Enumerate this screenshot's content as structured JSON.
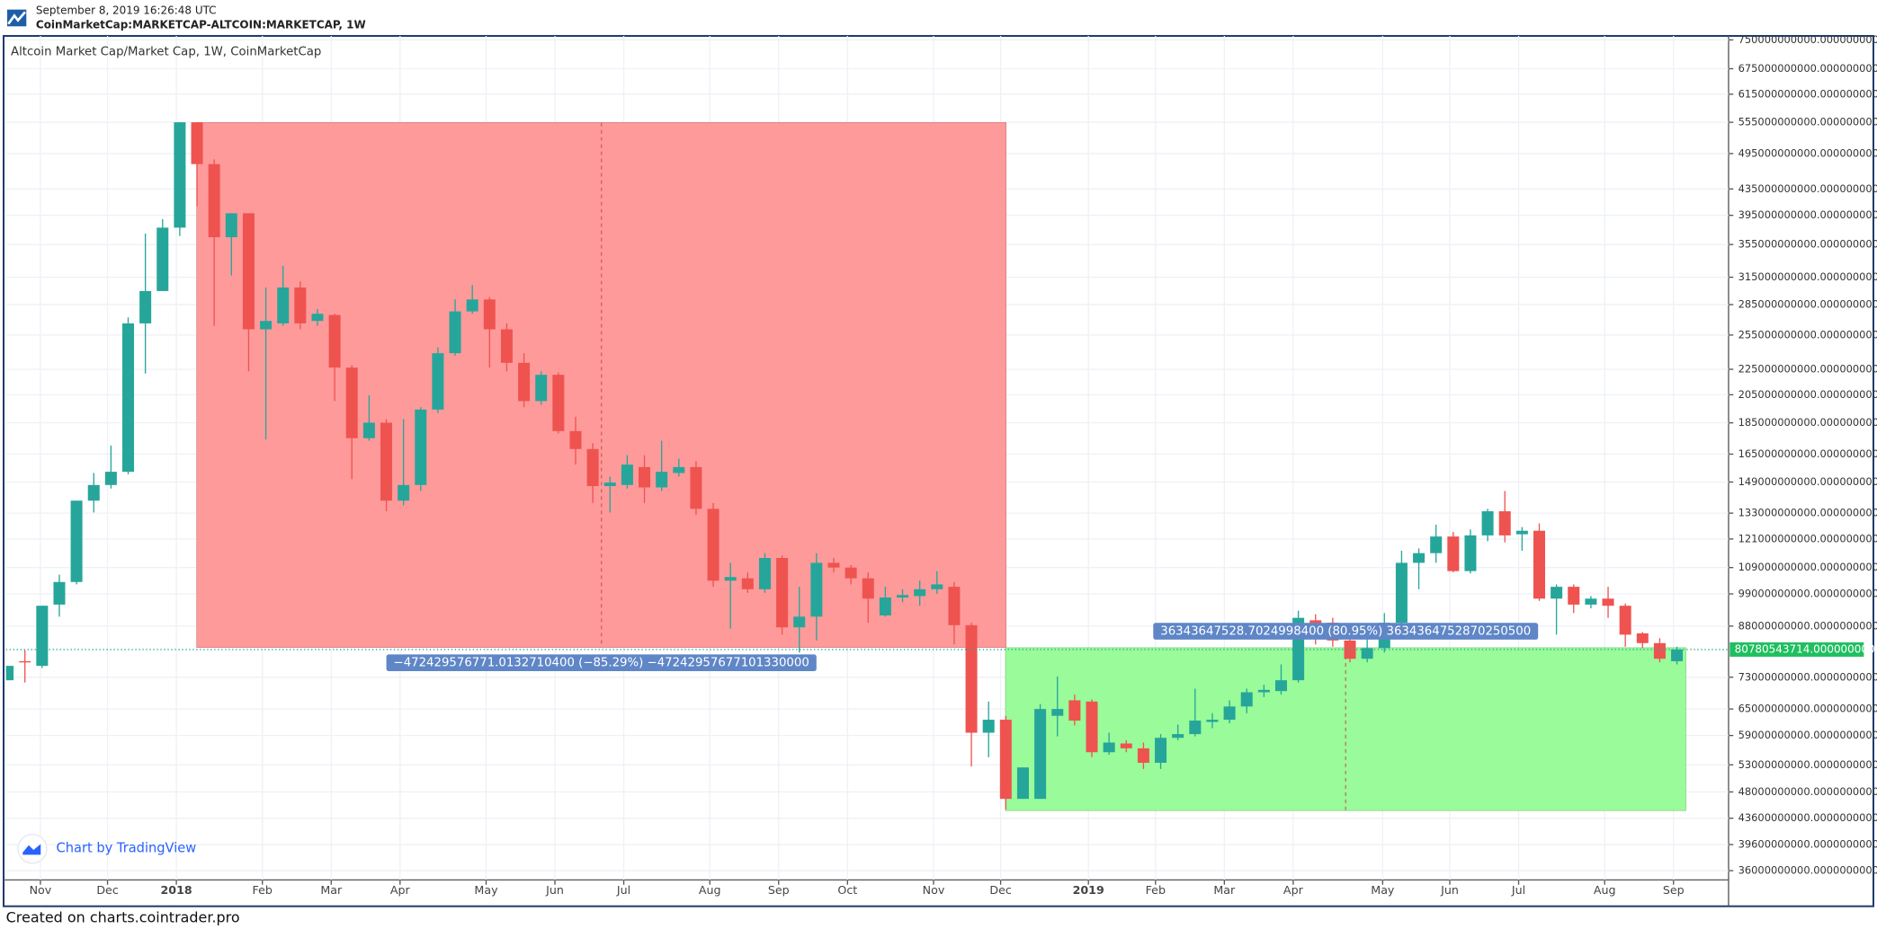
{
  "chart_data": {
    "type": "candlestick",
    "timestamp": "September 8, 2019 16:26:48 UTC",
    "symbol": "CoinMarketCap:MARKETCAP-ALTCOIN:MARKETCAP, 1W",
    "title": "Altcoin Market Cap/Market Cap, 1W, CoinMarketCap",
    "watermark": "Chart by TradingView",
    "footer": "Created on charts.cointrader.pro",
    "log_y": true,
    "grid": true,
    "up_color": "#26a69a",
    "down_color": "#ef5350",
    "xlim": [
      -0.1,
      100
    ],
    "xticks": [
      {
        "value": 1.9,
        "label": "Nov"
      },
      {
        "value": 5.8,
        "label": "Dec"
      },
      {
        "value": 9.8,
        "label": "2018"
      },
      {
        "value": 14.8,
        "label": "Feb"
      },
      {
        "value": 18.8,
        "label": "Mar"
      },
      {
        "value": 22.8,
        "label": "Apr"
      },
      {
        "value": 27.8,
        "label": "May"
      },
      {
        "value": 31.8,
        "label": "Jun"
      },
      {
        "value": 35.8,
        "label": "Jul"
      },
      {
        "value": 40.8,
        "label": "Aug"
      },
      {
        "value": 44.8,
        "label": "Sep"
      },
      {
        "value": 48.8,
        "label": "Oct"
      },
      {
        "value": 53.8,
        "label": "Nov"
      },
      {
        "value": 57.7,
        "label": "Dec"
      },
      {
        "value": 62.8,
        "label": "2019"
      },
      {
        "value": 66.7,
        "label": "Feb"
      },
      {
        "value": 70.7,
        "label": "Mar"
      },
      {
        "value": 74.7,
        "label": "Apr"
      },
      {
        "value": 79.9,
        "label": "May"
      },
      {
        "value": 83.8,
        "label": "Jun"
      },
      {
        "value": 87.8,
        "label": "Jul"
      },
      {
        "value": 92.8,
        "label": "Aug"
      },
      {
        "value": 96.8,
        "label": "Sep"
      }
    ],
    "ylim": [
      34800000000.0,
      761000000000.0
    ],
    "yticks": [
      {
        "value": 750000000000.0,
        "label": "750000000000.0000000000"
      },
      {
        "value": 675000000000.0,
        "label": "675000000000.0000000000"
      },
      {
        "value": 615000000000.0,
        "label": "615000000000.0000000000"
      },
      {
        "value": 555000000000.0,
        "label": "555000000000.0000000000"
      },
      {
        "value": 495000000000.0,
        "label": "495000000000.0000000000"
      },
      {
        "value": 435000000000.0,
        "label": "435000000000.0000000000"
      },
      {
        "value": 395000000000.0,
        "label": "395000000000.0000000000"
      },
      {
        "value": 355000000000.0,
        "label": "355000000000.0000000000"
      },
      {
        "value": 315000000000.0,
        "label": "315000000000.0000000000"
      },
      {
        "value": 285000000000.0,
        "label": "285000000000.0000000000"
      },
      {
        "value": 255000000000.0,
        "label": "255000000000.0000000000"
      },
      {
        "value": 225000000000.0,
        "label": "225000000000.0000000000"
      },
      {
        "value": 205000000000.0,
        "label": "205000000000.0000000000"
      },
      {
        "value": 185000000000.0,
        "label": "185000000000.0000000000"
      },
      {
        "value": 165000000000.0,
        "label": "165000000000.0000000000"
      },
      {
        "value": 149000000000.0,
        "label": "149000000000.0000000000"
      },
      {
        "value": 133000000000.0,
        "label": "133000000000.0000000000"
      },
      {
        "value": 121000000000.0,
        "label": "121000000000.0000000000"
      },
      {
        "value": 109000000000.0,
        "label": "109000000000.0000000000"
      },
      {
        "value": 99000000000.0,
        "label": "99000000000.0000000000"
      },
      {
        "value": 88000000000.0,
        "label": "88000000000.0000000000"
      },
      {
        "value": 73000000000.0,
        "label": "73000000000.0000000000"
      },
      {
        "value": 65000000000.0,
        "label": "65000000000.0000000000"
      },
      {
        "value": 59000000000.0,
        "label": "59000000000.0000000000"
      },
      {
        "value": 53000000000.0,
        "label": "53000000000.0000000000"
      },
      {
        "value": 48000000000.0,
        "label": "48000000000.0000000000"
      },
      {
        "value": 43600000000.0,
        "label": "43600000000.0000000000"
      },
      {
        "value": 39600000000.0,
        "label": "39600000000.0000000000"
      },
      {
        "value": 36000000000.0,
        "label": "36000000000.0000000000"
      }
    ],
    "open": [
      72200000000.0,
      77400000000.0,
      76100000000.0,
      95200000000.0,
      103400000000.0,
      139200000000.0,
      147400000000.0,
      154700000000.0,
      266100000000.0,
      299500000000.0,
      377600000000.0,
      555000000000.0,
      476300000000.0,
      364600000000.0,
      398000000000.0,
      260400000000.0,
      266100000000.0,
      303400000000.0,
      268500000000.0,
      274400000000.0,
      226400000000.0,
      174900000000.0,
      185100000000.0,
      139200000000.0,
      147400000000.0,
      194200000000.0,
      238600000000.0,
      278000000000.0,
      290400000000.0,
      260400000000.0,
      230400000000.0,
      200300000000.0,
      220500000000.0,
      179500000000.0,
      168100000000.0,
      146800000000.0,
      147400000000.0,
      157400000000.0,
      146100000000.0,
      154000000000.0,
      157400000000.0,
      135100000000.0,
      103900000000.0,
      104800000000.0,
      100700000000.0,
      112900000000.0,
      87600000000.0,
      91100000000.0,
      110900000000.0,
      109000000000.0,
      104800000000.0,
      91500000000.0,
      97700000000.0,
      98200000000.0,
      100700000000.0,
      101600000000.0,
      88300000000.0,
      59600000000.0,
      62500000000.0,
      46800000000.0,
      46800000000.0,
      63400000000.0,
      67100000000.0,
      66800000000.0,
      55500000000.0,
      57300000000.0,
      56300000000.0,
      53400000000.0,
      58500000000.0,
      59300000000.0,
      62000000000.0,
      62500000000.0,
      65600000000.0,
      69100000000.0,
      69400000000.0,
      72200000000.0,
      89900000000.0,
      89100000000.0,
      83500000000.0,
      78100000000.0,
      81200000000.0,
      89100000000.0,
      110900000000.0,
      114900000000.0,
      122100000000.0,
      107600000000.0,
      122600000000.0,
      133900000000.0,
      123100000000.0,
      124700000000.0,
      97300000000.0,
      101600000000.0,
      95200000000.0,
      97300000000.0,
      94800000000.0,
      85700000000.0,
      82700000000.0,
      77400000000.0
    ],
    "high": [
      76100000000.0,
      80600000000.0,
      94800000000.0,
      106200000000.0,
      139200000000.0,
      154000000000.0,
      170300000000.0,
      272000000000.0,
      369500000000.0,
      389400000000.0,
      555000000000.0,
      555000000000.0,
      484700000000.0,
      398000000000.0,
      398000000000.0,
      303400000000.0,
      328400000000.0,
      310200000000.0,
      280500000000.0,
      275600000000.0,
      228400000000.0,
      204600000000.0,
      187500000000.0,
      187500000000.0,
      195900000000.0,
      243800000000.0,
      290400000000.0,
      306100000000.0,
      293000000000.0,
      266100000000.0,
      238600000000.0,
      223400000000.0,
      222400000000.0,
      189200000000.0,
      171800000000.0,
      152000000000.0,
      164400000000.0,
      164400000000.0,
      173300000000.0,
      162300000000.0,
      160900000000.0,
      138000000000.0,
      110900000000.0,
      107100000000.0,
      114900000000.0,
      113900000000.0,
      101600000000.0,
      114900000000.0,
      112900000000.0,
      110000000000.0,
      107100000000.0,
      101600000000.0,
      100700000000.0,
      103900000000.0,
      107600000000.0,
      103400000000.0,
      89100000000.0,
      66800000000.0,
      63400000000.0,
      52500000000.0,
      66200000000.0,
      73200000000.0,
      68500000000.0,
      67300000000.0,
      59600000000.0,
      58000000000.0,
      57500000000.0,
      59300000000.0,
      61400000000.0,
      70000000000.0,
      64000000000.0,
      67100000000.0,
      70000000000.0,
      71000000000.0,
      76500000000.0,
      93100000000.0,
      91900000000.0,
      90700000000.0,
      87200000000.0,
      84200000000.0,
      92300000000.0,
      115900000000.0,
      116900000000.0,
      127500000000.0,
      124200000000.0,
      125300000000.0,
      135100000000.0,
      144200000000.0,
      126400000000.0,
      128100000000.0,
      102500000000.0,
      102500000000.0,
      98200000000.0,
      101600000000.0,
      95600000000.0,
      86100000000.0,
      84200000000.0,
      81600000000.0
    ],
    "low": [
      72200000000.0,
      71600000000.0,
      75500000000.0,
      91100000000.0,
      102500000000.0,
      133300000000.0,
      145500000000.0,
      153300000000.0,
      221500000000.0,
      299500000000.0,
      366300000000.0,
      408600000000.0,
      263800000000.0,
      317000000000.0,
      223400000000.0,
      174100000000.0,
      263800000000.0,
      260400000000.0,
      263800000000.0,
      200300000000.0,
      150600000000.0,
      173300000000.0,
      133900000000.0,
      136800000000.0,
      144200000000.0,
      191700000000.0,
      236500000000.0,
      275600000000.0,
      226400000000.0,
      223400000000.0,
      195900000000.0,
      197600000000.0,
      178000000000.0,
      158800000000.0,
      138000000000.0,
      133300000000.0,
      145500000000.0,
      138000000000.0,
      144200000000.0,
      152000000000.0,
      132100000000.0,
      101600000000.0,
      87200000000.0,
      99400000000.0,
      99400000000.0,
      85300000000.0,
      79900000000.0,
      83500000000.0,
      107100000000.0,
      102500000000.0,
      89100000000.0,
      91100000000.0,
      96000000000.0,
      94800000000.0,
      99000000000.0,
      82300000000.0,
      52700000000.0,
      54500000000.0,
      45000000000.0,
      46800000000.0,
      46800000000.0,
      58800000000.0,
      61200000000.0,
      54500000000.0,
      55000000000.0,
      55500000000.0,
      52200000000.0,
      52200000000.0,
      58000000000.0,
      58800000000.0,
      60600000000.0,
      61700000000.0,
      64000000000.0,
      67900000000.0,
      68500000000.0,
      71600000000.0,
      82300000000.0,
      81600000000.0,
      77100000000.0,
      77100000000.0,
      79900000000.0,
      88300000000.0,
      100700000000.0,
      110900000000.0,
      107100000000.0,
      106700000000.0,
      120000000000.0,
      119500000000.0,
      115900000000.0,
      96500000000.0,
      85300000000.0,
      92300000000.0,
      93900000000.0,
      90700000000.0,
      81600000000.0,
      81200000000.0,
      77100000000.0,
      76500000000.0
    ],
    "close": [
      76100000000.0,
      77200000000.0,
      94800000000.0,
      103400000000.0,
      139200000000.0,
      147400000000.0,
      154700000000.0,
      266100000000.0,
      299500000000.0,
      377600000000.0,
      555000000000.0,
      476300000000.0,
      364600000000.0,
      398000000000.0,
      260400000000.0,
      268500000000.0,
      303400000000.0,
      266100000000.0,
      275600000000.0,
      226400000000.0,
      174900000000.0,
      185100000000.0,
      139200000000.0,
      147400000000.0,
      194200000000.0,
      238600000000.0,
      278000000000.0,
      290400000000.0,
      260400000000.0,
      230400000000.0,
      200300000000.0,
      220500000000.0,
      179500000000.0,
      168100000000.0,
      146800000000.0,
      148700000000.0,
      158800000000.0,
      146100000000.0,
      154700000000.0,
      157400000000.0,
      135100000000.0,
      103900000000.0,
      105300000000.0,
      100700000000.0,
      112900000000.0,
      87600000000.0,
      91100000000.0,
      110900000000.0,
      109000000000.0,
      104800000000.0,
      97300000000.0,
      97700000000.0,
      98600000000.0,
      100700000000.0,
      102500000000.0,
      88300000000.0,
      59600000000.0,
      62500000000.0,
      46800000000.0,
      52500000000.0,
      65000000000.0,
      65000000000.0,
      62300000000.0,
      55500000000.0,
      57500000000.0,
      56300000000.0,
      53400000000.0,
      58500000000.0,
      59300000000.0,
      62300000000.0,
      62500000000.0,
      65600000000.0,
      69100000000.0,
      69700000000.0,
      72200000000.0,
      90700000000.0,
      88700000000.0,
      83500000000.0,
      78100000000.0,
      81200000000.0,
      89100000000.0,
      110900000000.0,
      114900000000.0,
      122100000000.0,
      107600000000.0,
      122600000000.0,
      133900000000.0,
      122600000000.0,
      124700000000.0,
      97300000000.0,
      101600000000.0,
      95200000000.0,
      97300000000.0,
      94800000000.0,
      85300000000.0,
      82700000000.0,
      78100000000.0,
      80780543714
    ],
    "last_price": {
      "value": 80780543714,
      "label": "80780543714.0000000000",
      "color": "#1fbf5f"
    },
    "ranges": [
      {
        "label": "−472429576771.0132710400 (−85.29%) −47242957677101330000",
        "x": [
          11,
          58
        ],
        "y": [
          553900000000.0,
          81470000000.0
        ],
        "color": "#ff9a9a"
      },
      {
        "label": "36343647528.7024998400 (80.95%) 3634364752870250500",
        "x": [
          58,
          97.5
        ],
        "y": [
          44890000000.0,
          81230000000.0
        ],
        "color": "#99fb99"
      }
    ]
  }
}
